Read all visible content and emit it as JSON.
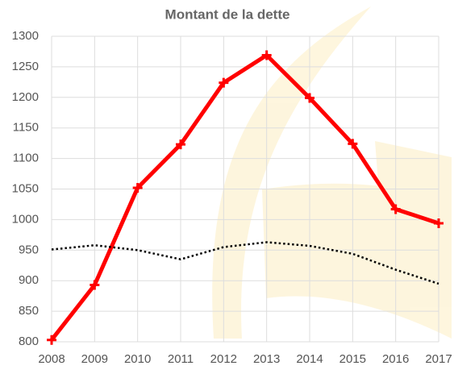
{
  "chart_data": {
    "type": "line",
    "title": "Montant de la dette",
    "x": [
      2008,
      2009,
      2010,
      2011,
      2012,
      2013,
      2014,
      2015,
      2016,
      2017
    ],
    "xlim": [
      2008,
      2017
    ],
    "xticks": [
      2008,
      2009,
      2010,
      2011,
      2012,
      2013,
      2014,
      2015,
      2016,
      2017
    ],
    "ylim": [
      800,
      1300
    ],
    "yticks": [
      800,
      850,
      900,
      950,
      1000,
      1050,
      1100,
      1150,
      1200,
      1250,
      1300
    ],
    "grid": true,
    "series": [
      {
        "color": "#ff0000",
        "style": "solid",
        "marker": "plus",
        "values": [
          803,
          893,
          1052,
          1123,
          1224,
          1269,
          1199,
          1124,
          1017,
          994
        ]
      },
      {
        "color": "#000000",
        "style": "dotted",
        "values": [
          951,
          958,
          950,
          935,
          955,
          963,
          957,
          944,
          918,
          895
        ]
      }
    ]
  }
}
